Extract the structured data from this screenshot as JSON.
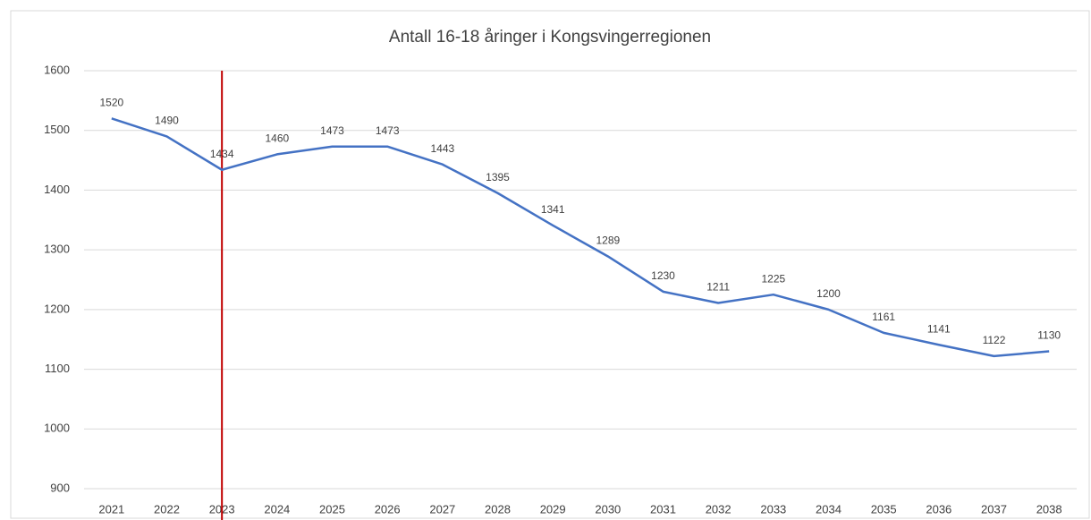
{
  "chart_data": {
    "type": "line",
    "title": "Antall 16-18 åringer i Kongsvingerregionen",
    "categories": [
      "2021",
      "2022",
      "2023",
      "2024",
      "2025",
      "2026",
      "2027",
      "2028",
      "2029",
      "2030",
      "2031",
      "2032",
      "2033",
      "2034",
      "2035",
      "2036",
      "2037",
      "2038"
    ],
    "series": [
      {
        "name": "Antall 16-18 åringer",
        "color": "#4472c4",
        "values": [
          1520,
          1490,
          1434,
          1460,
          1473,
          1473,
          1443,
          1395,
          1341,
          1289,
          1230,
          1211,
          1225,
          1200,
          1161,
          1141,
          1122,
          1130
        ]
      }
    ],
    "ylim": [
      900,
      1600
    ],
    "yticks": [
      900,
      1000,
      1100,
      1200,
      1300,
      1400,
      1500,
      1600
    ],
    "grid": true,
    "vline": {
      "category": "2023",
      "color": "#c00000"
    }
  }
}
